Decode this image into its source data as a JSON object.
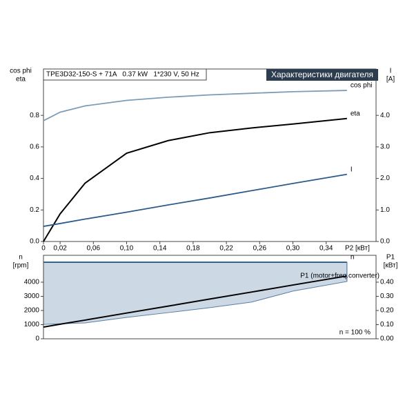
{
  "chart_data": [
    {
      "type": "line",
      "title": "TPE3D32-150-S + 71A   0.37 kW   1*230 V, 50 Hz",
      "subtitle": "Характеристики двигателя",
      "xlabel": "P2 [кВт]",
      "ylabel": [
        "cos phi",
        "eta"
      ],
      "y2label": [
        "I",
        "[A]"
      ],
      "x": [
        0,
        0.02,
        0.05,
        0.1,
        0.15,
        0.2,
        0.25,
        0.3,
        0.365
      ],
      "xlim": [
        0,
        0.4
      ],
      "xticks": [
        0,
        {
          "value": 0.02,
          "label": "0,02"
        },
        {
          "value": 0.06,
          "label": "0,06"
        },
        {
          "value": 0.1,
          "label": "0,10"
        },
        {
          "value": 0.14,
          "label": "0,14"
        },
        {
          "value": 0.18,
          "label": "0,18"
        },
        {
          "value": 0.22,
          "label": "0,22"
        },
        {
          "value": 0.26,
          "label": "0,26"
        },
        {
          "value": 0.3,
          "label": "0,30"
        },
        {
          "value": 0.34,
          "label": "0,34"
        }
      ],
      "ylim": [
        0,
        1.094
      ],
      "yticks": [
        {
          "value": 0,
          "label": "0.0"
        },
        0.2,
        0.4,
        0.6,
        0.8
      ],
      "y2lim": [
        0,
        5.47
      ],
      "y2ticks": [
        {
          "value": 0,
          "label": "0.0"
        },
        {
          "value": 1,
          "label": "1.0"
        },
        {
          "value": 2,
          "label": "2.0"
        },
        {
          "value": 3,
          "label": "3.0"
        },
        {
          "value": 4,
          "label": "4.0"
        }
      ],
      "series": [
        {
          "name": "cos phi",
          "color": "#7b9cb8",
          "values": [
            0.766,
            0.82,
            0.86,
            0.895,
            0.915,
            0.93,
            0.94,
            0.95,
            0.958
          ]
        },
        {
          "name": "eta",
          "color": "#000000",
          "values": [
            0,
            0.175,
            0.37,
            0.56,
            0.64,
            0.69,
            0.72,
            0.745,
            0.78
          ]
        },
        {
          "name": "I",
          "color": "#2a5b8a",
          "axis": "y2",
          "values": [
            0.48,
            0.57,
            0.71,
            0.93,
            1.16,
            1.38,
            1.61,
            1.84,
            2.13
          ]
        }
      ]
    },
    {
      "type": "line",
      "ylabel": [
        "n",
        "[rpm]"
      ],
      "y2label": [
        "P1",
        "[кВт]"
      ],
      "annotation": "n = 100 %",
      "x": [
        0,
        0.02,
        0.05,
        0.1,
        0.15,
        0.2,
        0.25,
        0.3,
        0.365
      ],
      "xlim": [
        0,
        0.4
      ],
      "ylim": [
        0,
        5900
      ],
      "yticks": [
        0,
        1000,
        2000,
        3000,
        4000
      ],
      "y2lim": [
        0,
        0.59
      ],
      "y2ticks": [
        {
          "value": 0,
          "label": "0.00"
        },
        {
          "value": 0.1,
          "label": "0.10"
        },
        {
          "value": 0.2,
          "label": "0.20"
        },
        {
          "value": 0.3,
          "label": "0.30"
        },
        {
          "value": 0.4,
          "label": "0.40"
        }
      ],
      "area": {
        "color": "#ccd8e4",
        "values": [
          1020,
          1060,
          1120,
          1510,
          1850,
          2200,
          2590,
          3370,
          4050
        ]
      },
      "series": [
        {
          "name": "n",
          "color": "#2a5b8a",
          "values": [
            5410,
            5410,
            5410,
            5410,
            5410,
            5410,
            5410,
            5410,
            5410
          ]
        },
        {
          "name": "P1 (motor+freq.converter)",
          "color": "#000000",
          "axis": "y2",
          "values": [
            0.083,
            0.103,
            0.132,
            0.182,
            0.231,
            0.281,
            0.33,
            0.38,
            0.444
          ]
        }
      ]
    }
  ]
}
